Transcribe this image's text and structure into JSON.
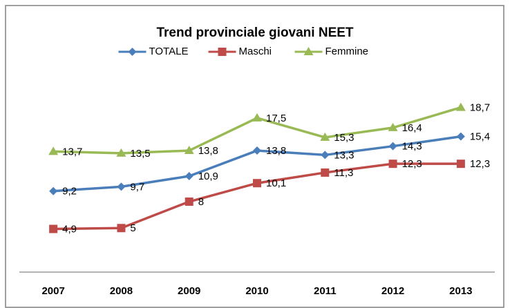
{
  "chart_data": {
    "type": "line",
    "title": "Trend provinciale giovani NEET",
    "categories": [
      "2007",
      "2008",
      "2009",
      "2010",
      "2011",
      "2012",
      "2013"
    ],
    "ylim": [
      0,
      20
    ],
    "legend": "top",
    "series": [
      {
        "name": "TOTALE",
        "color": "#4a7ebb",
        "marker": "diamond",
        "values": [
          9.2,
          9.7,
          10.9,
          13.8,
          13.3,
          14.3,
          15.4
        ],
        "value_labels": [
          "9,2",
          "9,7",
          "10,9",
          "13,8",
          "13,3",
          "14,3",
          "15,4"
        ]
      },
      {
        "name": "Maschi",
        "color": "#be4b48",
        "marker": "square",
        "values": [
          4.9,
          5,
          8,
          10.1,
          11.3,
          12.3,
          12.3
        ],
        "value_labels": [
          "4,9",
          "5",
          "8",
          "10,1",
          "11,3",
          "12,3",
          "12,3"
        ]
      },
      {
        "name": "Femmine",
        "color": "#98b954",
        "marker": "triangle",
        "values": [
          13.7,
          13.5,
          13.8,
          17.5,
          15.3,
          16.4,
          18.7
        ],
        "value_labels": [
          "13,7",
          "13,5",
          "13,8",
          "17,5",
          "15,3",
          "16,4",
          "18,7"
        ]
      }
    ]
  }
}
